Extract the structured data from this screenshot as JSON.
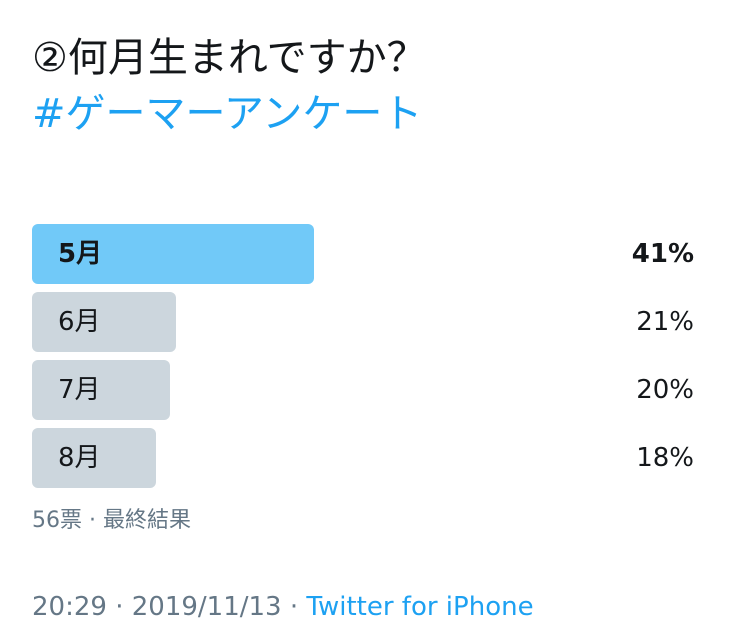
{
  "tweet": {
    "line1": "②何月生まれですか？",
    "hashtag": "#ゲーマーアンケート"
  },
  "poll": {
    "options": [
      {
        "label": "5月",
        "percent": 41,
        "percent_text": "41%",
        "winner": true
      },
      {
        "label": "6月",
        "percent": 21,
        "percent_text": "21%",
        "winner": false
      },
      {
        "label": "7月",
        "percent": 20,
        "percent_text": "20%",
        "winner": false
      },
      {
        "label": "8月",
        "percent": 18,
        "percent_text": "18%",
        "winner": false
      }
    ],
    "votes": "56票",
    "separator": " · ",
    "status": "最終結果"
  },
  "footer": {
    "time": "20:29",
    "date": "2019/11/13",
    "separator": " · ",
    "source": "Twitter for iPhone"
  },
  "colors": {
    "winner_bar": "#71c9f8",
    "bar": "#ccd6dd",
    "link": "#1da1f2",
    "meta": "#657786",
    "text": "#14171a"
  }
}
